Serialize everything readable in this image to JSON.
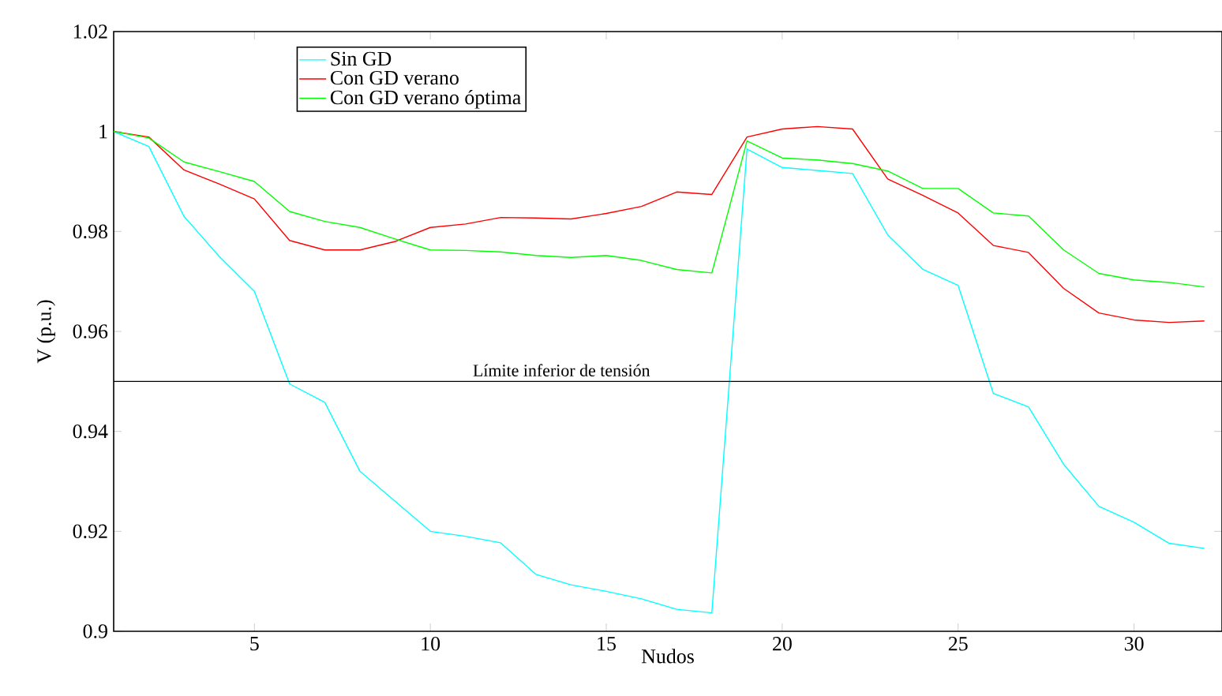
{
  "chart_data": {
    "type": "line",
    "xlabel": "Nudos",
    "ylabel": "V (p.u.)",
    "x": [
      1,
      2,
      3,
      4,
      5,
      6,
      7,
      8,
      9,
      10,
      11,
      12,
      13,
      14,
      15,
      16,
      17,
      18,
      19,
      20,
      21,
      22,
      23,
      24,
      25,
      26,
      27,
      28,
      29,
      30,
      31,
      32
    ],
    "series": [
      {
        "name": "Sin GD",
        "color": "#00ffff",
        "values": [
          1.0,
          0.997,
          0.983,
          0.975,
          0.968,
          0.9495,
          0.9458,
          0.932,
          0.926,
          0.92,
          0.919,
          0.9177,
          0.9114,
          0.9093,
          0.908,
          0.9065,
          0.9044,
          0.9037,
          0.9965,
          0.9928,
          0.9922,
          0.9916,
          0.9793,
          0.9724,
          0.9692,
          0.9476,
          0.9449,
          0.9334,
          0.925,
          0.9218,
          0.9176,
          0.9166
        ]
      },
      {
        "name": "Con GD verano",
        "color": "#ff0000",
        "values": [
          1.0,
          0.9989,
          0.9923,
          0.9895,
          0.9865,
          0.9782,
          0.9763,
          0.9763,
          0.978,
          0.9808,
          0.9815,
          0.9828,
          0.9827,
          0.9825,
          0.9836,
          0.985,
          0.9879,
          0.9874,
          0.9989,
          1.0005,
          1.001,
          1.0005,
          0.9905,
          0.9872,
          0.9837,
          0.9772,
          0.9758,
          0.9686,
          0.9637,
          0.9623,
          0.9618,
          0.9621
        ]
      },
      {
        "name": "Con GD verano óptima",
        "color": "#00ff00",
        "values": [
          1.0,
          0.9987,
          0.9939,
          0.992,
          0.99,
          0.984,
          0.982,
          0.9808,
          0.9785,
          0.9763,
          0.9762,
          0.9759,
          0.9752,
          0.9748,
          0.9752,
          0.9742,
          0.9724,
          0.9717,
          0.9981,
          0.9947,
          0.9943,
          0.9936,
          0.9921,
          0.9886,
          0.9886,
          0.9837,
          0.9831,
          0.9763,
          0.9716,
          0.9703,
          0.9698,
          0.9689
        ]
      }
    ],
    "xlim": [
      1,
      32.5
    ],
    "ylim": [
      0.9,
      1.02
    ],
    "xticks": [
      5,
      10,
      15,
      20,
      25,
      30
    ],
    "yticks": [
      0.9,
      0.92,
      0.94,
      0.96,
      0.98,
      1,
      1.02
    ],
    "ref_lines": [
      {
        "axis": "y",
        "value": 0.95,
        "label": "Límite inferior de tensión",
        "color": "#000000"
      }
    ],
    "legend": "top left"
  }
}
